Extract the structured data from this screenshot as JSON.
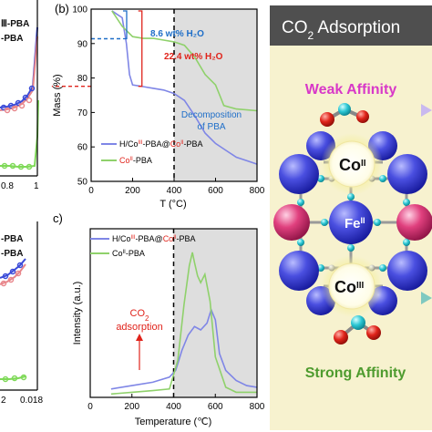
{
  "left_fragment": {
    "top": {
      "legend": [
        "Ⅲ-PBA",
        "-PBA"
      ],
      "tick_labels": [
        "0.8",
        "1"
      ],
      "series_colors": [
        "#3b4bd8",
        "#e8868b",
        "#7ed957"
      ]
    },
    "bottom": {
      "legend": [
        "-PBA",
        "-PBA"
      ],
      "tick_labels": [
        "2",
        "0.018"
      ]
    }
  },
  "panel_b": {
    "label": "(b)",
    "annotation_blue": "8.6 wt% H₂O",
    "annotation_red": "22.4 wt% H₂O",
    "annotation_decomp": "Decomposition of PBA",
    "colors": {
      "blue": "#7f86e6",
      "green": "#8fd16b",
      "red": "#e0231b",
      "annot_blue": "#1e6ec8",
      "shade": "#dedede"
    }
  },
  "panel_c": {
    "label": "c)",
    "annotation_co2": "CO₂ adsorption"
  },
  "legend_b": [
    "H/CoIII-PBA@CoII-PBA",
    "CoII-PBA"
  ],
  "legend_c": [
    "H/CoIII-PBA@CoII-PBA",
    "CoII-PBA"
  ],
  "right_panel": {
    "title": "CO₂ Adsorption",
    "weak_label": "Weak Affinity",
    "strong_label": "Strong Affinity",
    "co_ii": "CoII",
    "fe_ii": "FeII",
    "co_iii": "CoIII",
    "colors": {
      "title_bg": "#4f4f4f",
      "panel_bg": "#f7f2cf",
      "weak": "#d838c8",
      "strong": "#4e9b2e"
    }
  },
  "chart_data": [
    {
      "type": "line",
      "ylabel": "Mass (%)",
      "xlabel": "T (°C)",
      "xlim": [
        0,
        800
      ],
      "ylim": [
        50,
        100
      ],
      "xticks": [
        0,
        200,
        400,
        600,
        800
      ],
      "yticks": [
        50,
        60,
        70,
        80,
        90,
        100
      ],
      "series": [
        {
          "name": "H/CoIII-PBA@CoII-PBA",
          "color": "#7f86e6",
          "x": [
            100,
            150,
            170,
            185,
            200,
            250,
            300,
            350,
            400,
            450,
            500,
            550,
            600,
            650,
            700,
            750,
            800
          ],
          "y": [
            99.5,
            97.5,
            90,
            81,
            78,
            77.5,
            77,
            76.5,
            75.5,
            73.5,
            69,
            64,
            61,
            59,
            57,
            56,
            55
          ]
        },
        {
          "name": "CoII-PBA",
          "color": "#8fd16b",
          "x": [
            100,
            150,
            200,
            250,
            300,
            350,
            400,
            450,
            500,
            550,
            600,
            620,
            640,
            700,
            800
          ],
          "y": [
            99.5,
            95,
            92,
            91.5,
            91.5,
            91,
            90.5,
            89.5,
            86,
            81,
            78,
            75,
            72,
            71,
            70.5
          ]
        }
      ],
      "annotations": [
        {
          "text": "8.6 wt% H₂O",
          "y": 91.4
        },
        {
          "text": "22.4 wt% H₂O",
          "y": 77.6
        },
        {
          "text": "Decomposition of PBA",
          "x": 400
        }
      ],
      "shaded_region": [
        400,
        800
      ],
      "vline": 400
    },
    {
      "type": "line",
      "ylabel": "Intensity (a.u.)",
      "xlabel": "Temperature (℃)",
      "xlim": [
        0,
        800
      ],
      "xticks": [
        0,
        200,
        400,
        600,
        800
      ],
      "series": [
        {
          "name": "H/CoIII-PBA@CoII-PBA",
          "color": "#7f86e6",
          "x": [
            100,
            200,
            300,
            380,
            410,
            440,
            470,
            500,
            530,
            560,
            580,
            600,
            620,
            650,
            700,
            750,
            800
          ],
          "y": [
            0.05,
            0.07,
            0.09,
            0.12,
            0.16,
            0.28,
            0.37,
            0.42,
            0.4,
            0.44,
            0.52,
            0.46,
            0.26,
            0.16,
            0.1,
            0.07,
            0.06
          ]
        },
        {
          "name": "CoII-PBA",
          "color": "#8fd16b",
          "x": [
            100,
            200,
            300,
            380,
            420,
            450,
            475,
            490,
            500,
            515,
            530,
            550,
            575,
            600,
            650,
            700,
            800
          ],
          "y": [
            0.02,
            0.03,
            0.04,
            0.05,
            0.22,
            0.55,
            0.78,
            0.86,
            0.8,
            0.72,
            0.68,
            0.73,
            0.57,
            0.24,
            0.06,
            0.03,
            0.03
          ]
        }
      ],
      "annotations": [
        {
          "text": "CO₂ adsorption",
          "x": 250
        }
      ],
      "shaded_region": [
        400,
        800
      ],
      "vline": 400
    }
  ]
}
